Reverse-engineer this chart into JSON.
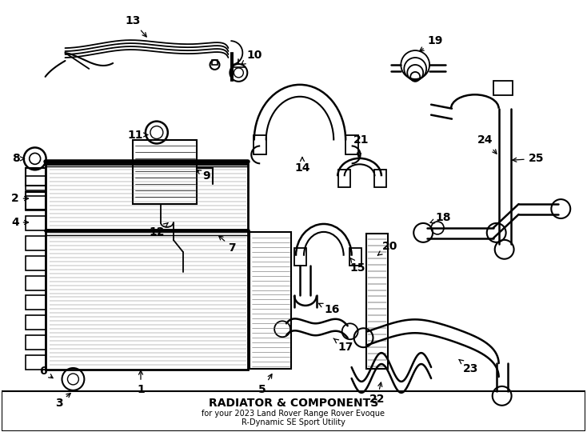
{
  "title": "RADIATOR & COMPONENTS",
  "subtitle1": "for your 2023 Land Rover Range Rover Evoque",
  "subtitle2": "R-Dynamic SE Sport Utility",
  "bg_color": "#ffffff",
  "line_color": "#000000",
  "fig_width": 7.34,
  "fig_height": 5.4,
  "dpi": 100,
  "lw_hose": 1.8,
  "lw_thick": 2.2,
  "lw_med": 1.4,
  "lw_thin": 0.9,
  "font_label": 10,
  "font_title": 10,
  "font_sub": 7
}
